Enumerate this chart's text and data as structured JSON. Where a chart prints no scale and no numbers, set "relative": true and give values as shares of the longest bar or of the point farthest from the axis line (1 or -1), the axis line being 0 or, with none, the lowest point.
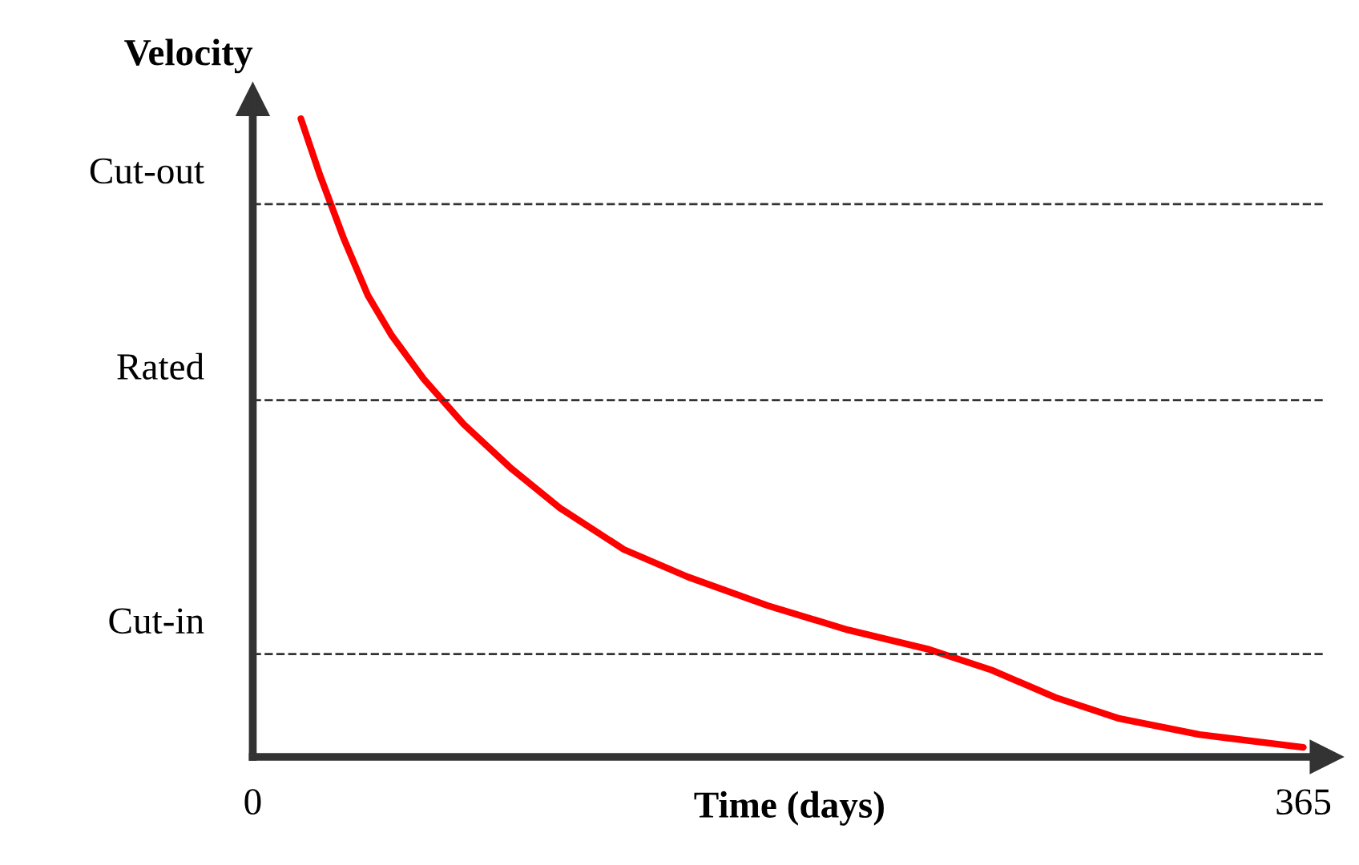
{
  "chart_data": {
    "type": "line",
    "relative": true,
    "ylabel": "Velocity",
    "xlabel": "Time (days)",
    "x": [
      16.7,
      23.3,
      31.7,
      40,
      48.3,
      59.4,
      73.3,
      90,
      106.7,
      128.9,
      151.1,
      178.9,
      206.7,
      234.4,
      256.7,
      278.9,
      301.1,
      328.9,
      365
    ],
    "series": [
      {
        "color": "#ff0000",
        "values": [
          1.0,
          0.912,
          0.811,
          0.723,
          0.66,
          0.592,
          0.521,
          0.451,
          0.39,
          0.325,
          0.282,
          0.237,
          0.199,
          0.169,
          0.136,
          0.093,
          0.06,
          0.035,
          0.015
        ]
      }
    ],
    "xlim": [
      0,
      373
    ],
    "xticks": [
      0,
      365
    ],
    "ref_lines": [
      {
        "axis": "y",
        "value": 0.866,
        "label": "Cut-out",
        "color": "#333333",
        "line_style": "dashed"
      },
      {
        "axis": "y",
        "value": 0.559,
        "label": "Rated",
        "color": "#333333",
        "line_style": "dashed"
      },
      {
        "axis": "y",
        "value": 0.161,
        "label": "Cut-in",
        "color": "#333333",
        "line_style": "dashed"
      }
    ],
    "tick_labels": "x",
    "grid": false,
    "legend": false,
    "marker": "none",
    "line_style": "solid"
  }
}
